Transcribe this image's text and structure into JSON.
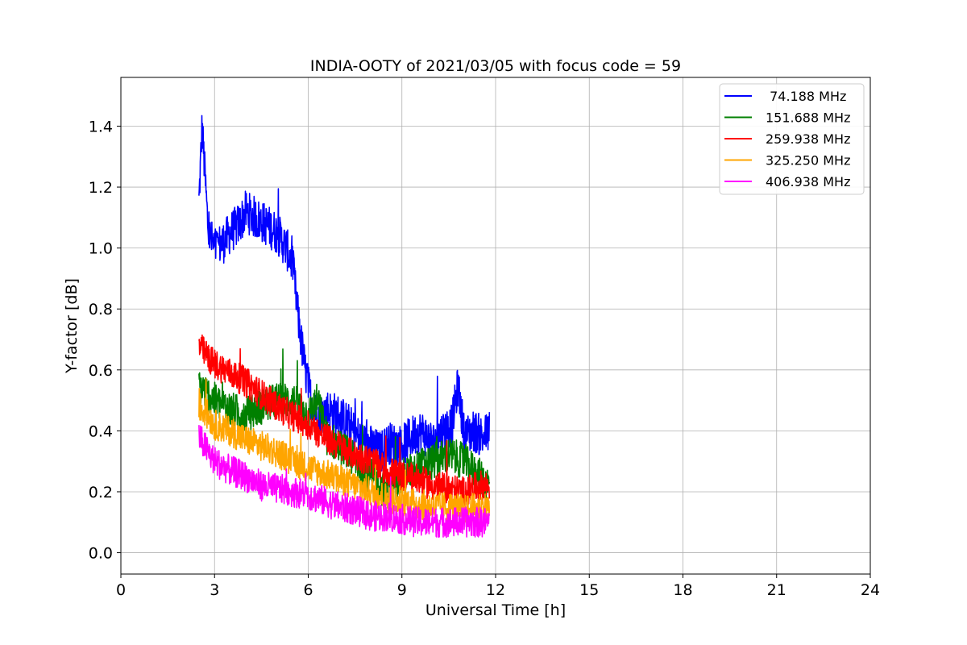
{
  "chart_data": {
    "type": "line",
    "title": "INDIA-OOTY of 2021/03/05 with focus code = 59",
    "xlabel": "Universal Time [h]",
    "ylabel": "Y-factor [dB]",
    "xlim": [
      0,
      24
    ],
    "ylim": [
      -0.07,
      1.56
    ],
    "xticks": [
      0,
      3,
      6,
      9,
      12,
      15,
      18,
      21,
      24
    ],
    "xtick_labels": [
      "0",
      "3",
      "6",
      "9",
      "12",
      "15",
      "18",
      "21",
      "24"
    ],
    "yticks": [
      0.0,
      0.2,
      0.4,
      0.6,
      0.8,
      1.0,
      1.2,
      1.4
    ],
    "ytick_labels": [
      "0.0",
      "0.2",
      "0.4",
      "0.6",
      "0.8",
      "1.0",
      "1.2",
      "1.4"
    ],
    "grid": true,
    "legend_position": "top-right",
    "series": [
      {
        "name": " 74.188 MHz",
        "color": "#0000ff",
        "x": [
          2.5,
          2.6,
          2.8,
          3.0,
          3.3,
          3.5,
          3.8,
          4.0,
          4.3,
          4.6,
          5.0,
          5.3,
          5.5,
          5.7,
          5.9,
          6.1,
          6.3,
          6.6,
          7.0,
          7.3,
          7.6,
          8.0,
          8.3,
          8.6,
          9.0,
          9.3,
          9.6,
          10.0,
          10.3,
          10.6,
          10.8,
          11.0,
          11.3,
          11.6,
          11.8
        ],
        "y": [
          1.15,
          1.4,
          1.05,
          1.0,
          1.02,
          1.05,
          1.08,
          1.12,
          1.1,
          1.08,
          1.05,
          1.0,
          0.95,
          0.75,
          0.6,
          0.5,
          0.45,
          0.47,
          0.45,
          0.42,
          0.38,
          0.35,
          0.33,
          0.36,
          0.35,
          0.38,
          0.4,
          0.36,
          0.4,
          0.42,
          0.55,
          0.38,
          0.4,
          0.38,
          0.4
        ],
        "spread": 0.07
      },
      {
        "name": "151.688 MHz",
        "color": "#008000",
        "x": [
          2.5,
          2.8,
          3.0,
          3.5,
          4.0,
          4.5,
          5.0,
          5.5,
          6.0,
          6.3,
          6.6,
          7.0,
          7.5,
          8.0,
          8.5,
          9.0,
          9.5,
          10.0,
          10.5,
          11.0,
          11.5,
          11.8
        ],
        "y": [
          0.55,
          0.52,
          0.5,
          0.47,
          0.45,
          0.48,
          0.5,
          0.5,
          0.45,
          0.5,
          0.38,
          0.35,
          0.3,
          0.25,
          0.2,
          0.25,
          0.28,
          0.3,
          0.32,
          0.3,
          0.25,
          0.22
        ],
        "spread": 0.06
      },
      {
        "name": "259.938 MHz",
        "color": "#ff0000",
        "x": [
          2.5,
          2.8,
          3.0,
          3.5,
          4.0,
          4.5,
          5.0,
          5.5,
          6.0,
          6.5,
          7.0,
          7.5,
          8.0,
          8.5,
          9.0,
          9.5,
          10.0,
          10.5,
          11.0,
          11.5,
          11.8
        ],
        "y": [
          0.68,
          0.64,
          0.62,
          0.59,
          0.56,
          0.52,
          0.48,
          0.45,
          0.42,
          0.38,
          0.35,
          0.32,
          0.3,
          0.27,
          0.25,
          0.24,
          0.22,
          0.21,
          0.2,
          0.22,
          0.22
        ],
        "spread": 0.05
      },
      {
        "name": "325.250 MHz",
        "color": "#ffa500",
        "x": [
          2.5,
          2.8,
          3.0,
          3.5,
          4.0,
          4.5,
          5.0,
          5.5,
          6.0,
          6.5,
          7.0,
          7.5,
          8.0,
          8.5,
          9.0,
          9.5,
          10.0,
          10.5,
          11.0,
          11.5,
          11.8
        ],
        "y": [
          0.48,
          0.45,
          0.42,
          0.4,
          0.37,
          0.35,
          0.33,
          0.3,
          0.28,
          0.26,
          0.24,
          0.22,
          0.2,
          0.18,
          0.17,
          0.16,
          0.15,
          0.15,
          0.14,
          0.15,
          0.15
        ],
        "spread": 0.05
      },
      {
        "name": "406.938 MHz",
        "color": "#ff00ff",
        "x": [
          2.5,
          2.8,
          3.0,
          3.5,
          4.0,
          4.5,
          5.0,
          5.5,
          6.0,
          6.5,
          7.0,
          7.5,
          8.0,
          8.5,
          9.0,
          9.5,
          10.0,
          10.5,
          11.0,
          11.5,
          11.8
        ],
        "y": [
          0.38,
          0.33,
          0.3,
          0.27,
          0.25,
          0.22,
          0.21,
          0.2,
          0.19,
          0.17,
          0.15,
          0.14,
          0.12,
          0.12,
          0.11,
          0.1,
          0.1,
          0.1,
          0.1,
          0.1,
          0.1
        ],
        "spread": 0.05
      }
    ]
  }
}
